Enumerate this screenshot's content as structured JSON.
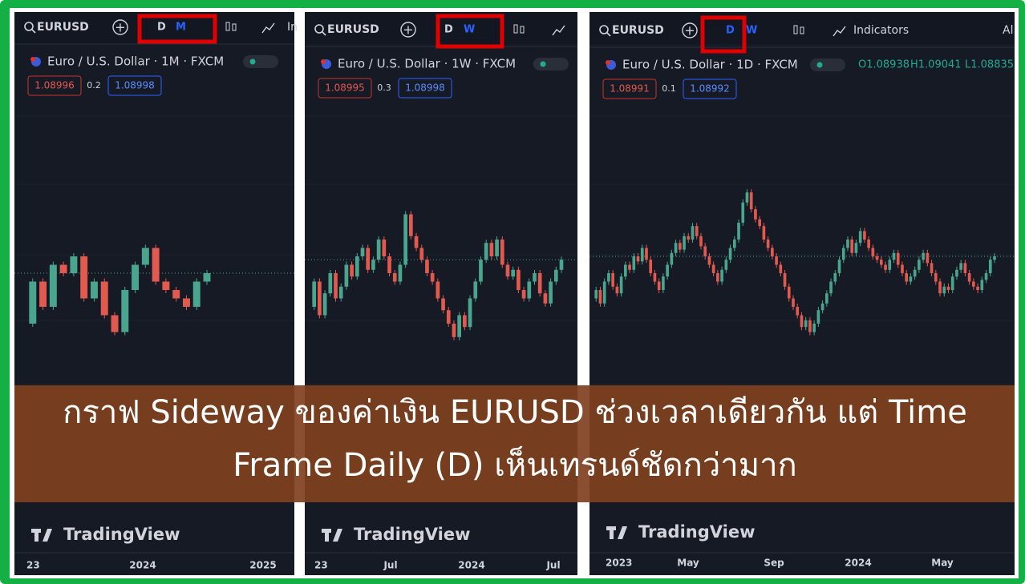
{
  "panels": [
    {
      "symbol": "EURUSD",
      "timeframes": [
        "D",
        "M"
      ],
      "toolbar_extra": [
        "In"
      ],
      "legend": "Euro / U.S. Dollar · 1M · FXCM",
      "bid": "1.08996",
      "spread": "0.2",
      "ask": "1.08998",
      "x_labels": [
        "23",
        "2024",
        "2025"
      ],
      "watermark": "TradingView",
      "chart_data": {
        "type": "candlestick",
        "closes": [
          1.06,
          1.085,
          1.07,
          1.095,
          1.09,
          1.1,
          1.075,
          1.085,
          1.065,
          1.055,
          1.08,
          1.095,
          1.105,
          1.085,
          1.08,
          1.075,
          1.07,
          1.085,
          1.09
        ],
        "ylim": [
          1.0,
          1.2
        ],
        "up_color": "#4aa58f",
        "down_color": "#e2594f"
      }
    },
    {
      "symbol": "EURUSD",
      "timeframes": [
        "D",
        "W"
      ],
      "toolbar_extra": [],
      "legend": "Euro / U.S. Dollar · 1W · FXCM",
      "bid": "1.08995",
      "spread": "0.3",
      "ask": "1.08998",
      "x_labels": [
        "23",
        "Jul",
        "2024",
        "Jul"
      ],
      "watermark": "TradingView",
      "chart_data": {
        "type": "candlestick",
        "closes": [
          1.07,
          1.085,
          1.065,
          1.078,
          1.09,
          1.075,
          1.082,
          1.095,
          1.088,
          1.1,
          1.105,
          1.092,
          1.098,
          1.11,
          1.1,
          1.09,
          1.085,
          1.095,
          1.125,
          1.112,
          1.105,
          1.098,
          1.09,
          1.085,
          1.075,
          1.068,
          1.06,
          1.052,
          1.065,
          1.058,
          1.075,
          1.085,
          1.098,
          1.108,
          1.1,
          1.11,
          1.095,
          1.088,
          1.092,
          1.08,
          1.075,
          1.085,
          1.09,
          1.078,
          1.072,
          1.085,
          1.092,
          1.098
        ],
        "ylim": [
          1.0,
          1.2
        ],
        "up_color": "#4aa58f",
        "down_color": "#e2594f"
      }
    },
    {
      "symbol": "EURUSD",
      "timeframes": [
        "D",
        "W"
      ],
      "toolbar_extra": [
        "Indicators",
        "Al"
      ],
      "legend": "Euro / U.S. Dollar · 1D · FXCM",
      "ohlc": [
        "O1.08938",
        "H1.09041",
        "L1.08835"
      ],
      "bid": "1.08991",
      "spread": "0.1",
      "ask": "1.08992",
      "x_labels": [
        "2023",
        "May",
        "Sep",
        "2024",
        "May"
      ],
      "watermark": "TradingView",
      "chart_data": {
        "type": "candlestick",
        "closes": [
          1.075,
          1.08,
          1.072,
          1.085,
          1.09,
          1.082,
          1.078,
          1.088,
          1.095,
          1.092,
          1.1,
          1.097,
          1.105,
          1.098,
          1.09,
          1.085,
          1.08,
          1.088,
          1.095,
          1.102,
          1.108,
          1.104,
          1.112,
          1.11,
          1.118,
          1.112,
          1.106,
          1.1,
          1.095,
          1.09,
          1.085,
          1.092,
          1.098,
          1.105,
          1.11,
          1.12,
          1.132,
          1.138,
          1.128,
          1.122,
          1.118,
          1.11,
          1.105,
          1.1,
          1.095,
          1.09,
          1.082,
          1.075,
          1.07,
          1.065,
          1.058,
          1.062,
          1.055,
          1.06,
          1.068,
          1.072,
          1.078,
          1.085,
          1.09,
          1.098,
          1.105,
          1.11,
          1.102,
          1.108,
          1.115,
          1.11,
          1.105,
          1.1,
          1.098,
          1.095,
          1.092,
          1.098,
          1.102,
          1.095,
          1.09,
          1.085,
          1.088,
          1.092,
          1.098,
          1.102,
          1.096,
          1.09,
          1.085,
          1.078,
          1.082,
          1.08,
          1.088,
          1.092,
          1.096,
          1.09,
          1.085,
          1.082,
          1.08,
          1.086,
          1.09,
          1.098,
          1.1
        ],
        "ylim": [
          1.0,
          1.2
        ],
        "up_color": "#4aa58f",
        "down_color": "#e2594f"
      }
    }
  ],
  "banner": {
    "lines": [
      "กราฟ Sideway ของค่าเงิน EURUSD ช่วงเวลาเดียวกัน แต่ Time",
      "Frame Daily (D) เห็นเทรนด์ชัดกว่ามาก"
    ]
  }
}
